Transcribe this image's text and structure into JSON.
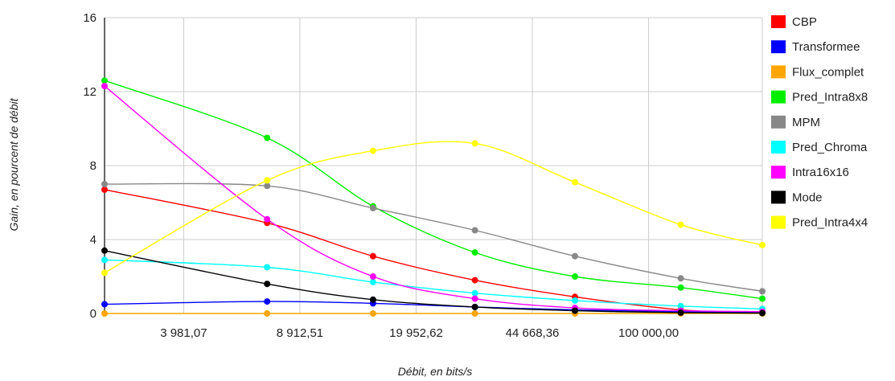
{
  "chart_data": {
    "type": "line",
    "title": "",
    "xlabel": "Débit, en bits/s",
    "ylabel": "Gain, en pourcent de débit",
    "x_scale": "log",
    "x_ticks": [
      3981.07,
      8912.51,
      19952.62,
      44668.36,
      100000.0
    ],
    "x_tick_labels": [
      "3 981,07",
      "8 912,51",
      "19 952,62",
      "44 668,36",
      "100 000,00"
    ],
    "y_ticks": [
      0,
      4,
      8,
      12,
      16
    ],
    "y_tick_labels": [
      "0",
      "4",
      "8",
      "12",
      "16"
    ],
    "ylim": [
      0,
      16
    ],
    "grid": true,
    "legend_position": "right",
    "x": [
      2300,
      7100,
      14800,
      30000,
      60000,
      125000,
      220000
    ],
    "series": [
      {
        "name": "CBP",
        "color": "#ff0000",
        "values": [
          6.7,
          4.9,
          3.1,
          1.8,
          0.9,
          0.2,
          0.05
        ]
      },
      {
        "name": "Transformee",
        "color": "#0000ff",
        "values": [
          0.5,
          0.65,
          0.55,
          0.35,
          0.2,
          0.1,
          0.05
        ]
      },
      {
        "name": "Flux_complet",
        "color": "#ffa500",
        "values": [
          0.0,
          0.0,
          0.0,
          0.0,
          0.0,
          0.0,
          0.0
        ]
      },
      {
        "name": "Pred_Intra8x8",
        "color": "#00ee00",
        "values": [
          12.6,
          9.5,
          5.8,
          3.3,
          2.0,
          1.4,
          0.8
        ]
      },
      {
        "name": "MPM",
        "color": "#888888",
        "values": [
          7.0,
          6.9,
          5.7,
          4.5,
          3.1,
          1.9,
          1.2
        ]
      },
      {
        "name": "Pred_Chroma",
        "color": "#00ffff",
        "values": [
          2.9,
          2.5,
          1.7,
          1.1,
          0.7,
          0.4,
          0.25
        ]
      },
      {
        "name": "Intra16x16",
        "color": "#ff00ff",
        "values": [
          12.3,
          5.1,
          2.0,
          0.8,
          0.3,
          0.15,
          0.1
        ]
      },
      {
        "name": "Mode",
        "color": "#000000",
        "values": [
          3.4,
          1.6,
          0.75,
          0.35,
          0.15,
          0.05,
          0.02
        ]
      },
      {
        "name": "Pred_Intra4x4",
        "color": "#ffff00",
        "values": [
          2.2,
          7.2,
          8.8,
          9.2,
          7.1,
          4.8,
          3.7
        ]
      }
    ]
  }
}
